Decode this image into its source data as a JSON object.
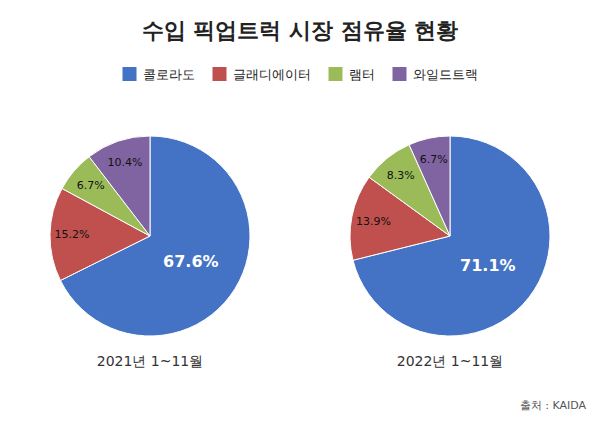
{
  "chart_data": {
    "type": "pie",
    "title": "수입 픽업트럭 시장 점유율 현황",
    "categories": [
      "콜로라도",
      "글래디에이터",
      "램터",
      "와일드트랙"
    ],
    "colors": [
      "#4472C4",
      "#C0504D",
      "#9BBB59",
      "#8064A2"
    ],
    "series": [
      {
        "name": "2021년 1~11월",
        "values": [
          67.6,
          15.2,
          6.7,
          10.4
        ],
        "value_labels": [
          "67.6%",
          "15.2%",
          "6.7%",
          "10.4%"
        ]
      },
      {
        "name": "2022년 1~11월",
        "values": [
          71.1,
          13.9,
          8.3,
          6.7
        ],
        "value_labels": [
          "71.1%",
          "13.9%",
          "8.3%",
          "6.7%"
        ]
      }
    ],
    "annotations": [
      "출처 : KAIDA"
    ],
    "data_labels": true,
    "legend": "top"
  }
}
